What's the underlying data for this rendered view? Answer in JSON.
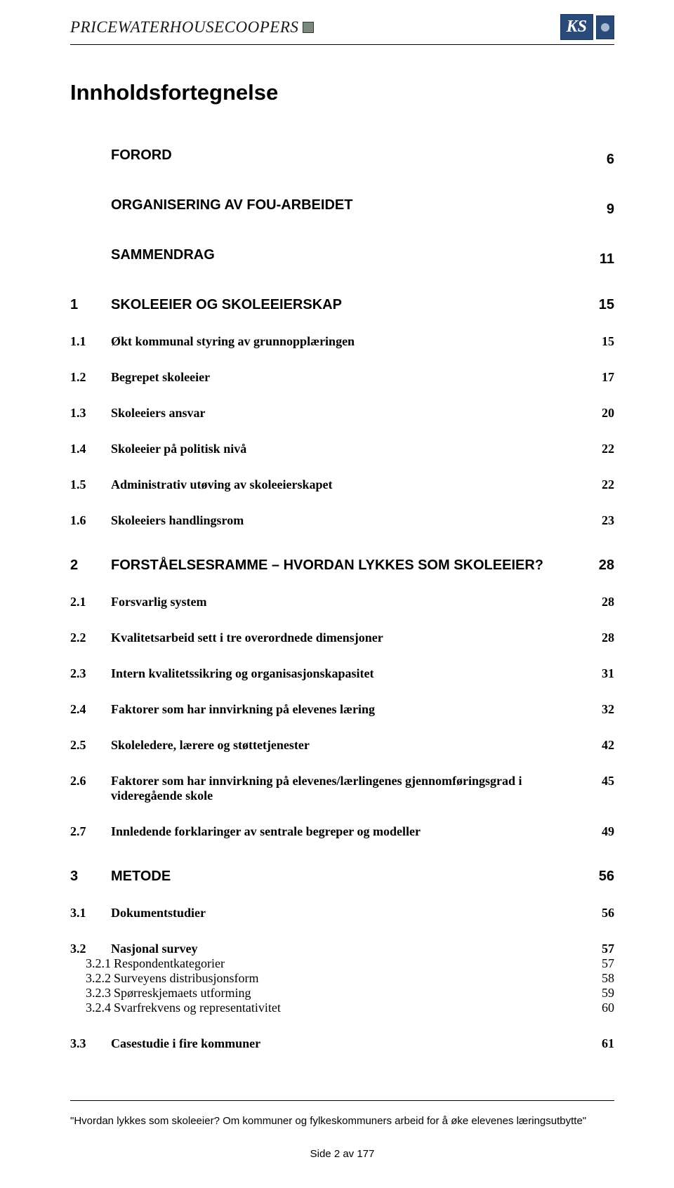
{
  "header": {
    "logo_pwc": "PRICEWATERHOUSECOOPERS",
    "logo_ks": "KS"
  },
  "title": "Innholdsfortegnelse",
  "toc": [
    {
      "style": "bold-sans",
      "num": "",
      "text": "FORORD",
      "page": "6",
      "space_after": "big"
    },
    {
      "style": "bold-sans",
      "num": "",
      "text": "ORGANISERING AV FOU-ARBEIDET",
      "page": "9",
      "space_after": "big"
    },
    {
      "style": "bold-sans",
      "num": "",
      "text": "SAMMENDRAG",
      "page": "11",
      "space_after": "big"
    },
    {
      "style": "bold-sans",
      "num": "1",
      "text": "SKOLEEIER OG SKOLEEIERSKAP",
      "page": "15",
      "space_after": "med"
    },
    {
      "style": "bold-serif",
      "num": "1.1",
      "text": "Økt kommunal styring av grunnopplæringen",
      "page": "15",
      "space_after": "med"
    },
    {
      "style": "bold-serif",
      "num": "1.2",
      "text": "Begrepet skoleeier",
      "page": "17",
      "space_after": "med"
    },
    {
      "style": "bold-serif",
      "num": "1.3",
      "text": "Skoleeiers ansvar",
      "page": "20",
      "space_after": "med"
    },
    {
      "style": "bold-serif",
      "num": "1.4",
      "text": "Skoleeier på politisk nivå",
      "page": "22",
      "space_after": "med"
    },
    {
      "style": "bold-serif",
      "num": "1.5",
      "text": "Administrativ utøving av skoleeierskapet",
      "page": "22",
      "space_after": "med"
    },
    {
      "style": "bold-serif",
      "num": "1.6",
      "text": "Skoleeiers handlingsrom",
      "page": "23",
      "space_after": "big"
    },
    {
      "style": "bold-sans",
      "num": "2",
      "text": "FORSTÅELSESRAMME – HVORDAN LYKKES SOM SKOLEEIER?",
      "page": "28",
      "space_after": "med"
    },
    {
      "style": "bold-serif",
      "num": "2.1",
      "text": "Forsvarlig system",
      "page": "28",
      "space_after": "med"
    },
    {
      "style": "bold-serif",
      "num": "2.2",
      "text": "Kvalitetsarbeid sett i tre overordnede dimensjoner",
      "page": "28",
      "space_after": "med"
    },
    {
      "style": "bold-serif",
      "num": "2.3",
      "text": "Intern kvalitetssikring og organisasjonskapasitet",
      "page": "31",
      "space_after": "med"
    },
    {
      "style": "bold-serif",
      "num": "2.4",
      "text": "Faktorer som har innvirkning på elevenes læring",
      "page": "32",
      "space_after": "med"
    },
    {
      "style": "bold-serif",
      "num": "2.5",
      "text": "Skoleledere, lærere og støttetjenester",
      "page": "42",
      "space_after": "med"
    },
    {
      "style": "bold-serif",
      "num": "2.6",
      "text": "Faktorer som har innvirkning på elevenes/lærlingenes gjennomføringsgrad i videregående skole",
      "page": "45",
      "space_after": "med",
      "multiline": true
    },
    {
      "style": "bold-serif",
      "num": "2.7",
      "text": "Innledende forklaringer av sentrale begreper og modeller",
      "page": "49",
      "space_after": "big"
    },
    {
      "style": "bold-sans",
      "num": "3",
      "text": "METODE",
      "page": "56",
      "space_after": "med"
    },
    {
      "style": "bold-serif",
      "num": "3.1",
      "text": "Dokumentstudier",
      "page": "56",
      "space_after": "med"
    },
    {
      "style": "bold-serif",
      "num": "3.2",
      "text": "Nasjonal survey",
      "page": "57",
      "space_after": "none"
    },
    {
      "style": "plain",
      "num": "3.2.1",
      "text": "Respondentkategorier",
      "page": "57",
      "space_after": "none",
      "sub": true
    },
    {
      "style": "plain",
      "num": "3.2.2",
      "text": "Surveyens distribusjonsform",
      "page": "58",
      "space_after": "none",
      "sub": true
    },
    {
      "style": "plain",
      "num": "3.2.3",
      "text": "Spørreskjemaets utforming",
      "page": "59",
      "space_after": "none",
      "sub": true
    },
    {
      "style": "plain",
      "num": "3.2.4",
      "text": "Svarfrekvens og representativitet",
      "page": "60",
      "space_after": "med",
      "sub": true
    },
    {
      "style": "bold-serif",
      "num": "3.3",
      "text": "Casestudie i fire kommuner",
      "page": "61",
      "space_after": "none"
    }
  ],
  "footer": {
    "text": "\"Hvordan lykkes som skoleeier? Om kommuner og fylkeskommuners arbeid for å øke elevenes læringsutbytte\"",
    "page_num": "Side 2 av 177"
  }
}
